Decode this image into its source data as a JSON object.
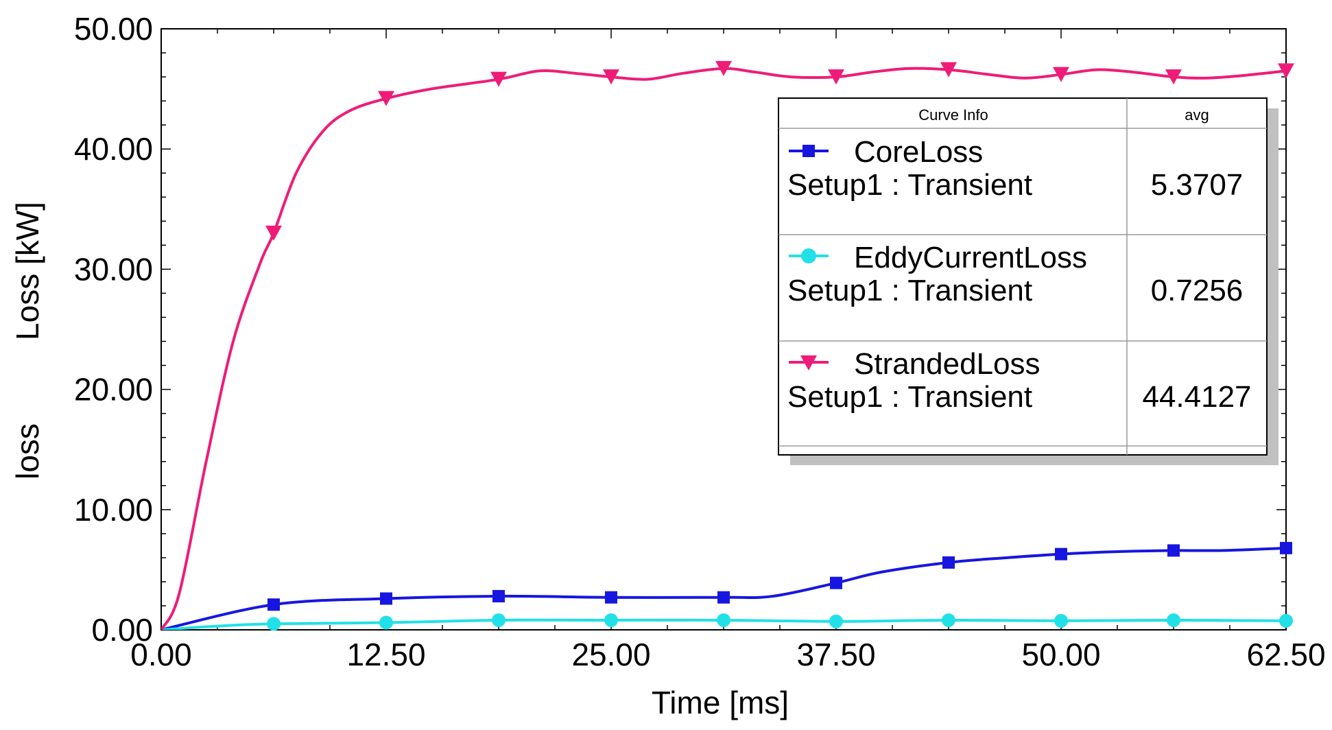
{
  "chart_data": {
    "type": "line",
    "xlabel": "Time [ms]",
    "ylabel": "Loss [kW]",
    "ylabel2": "loss",
    "xlim": [
      0,
      62.5
    ],
    "ylim": [
      0,
      50
    ],
    "x_ticks": [
      "0.00",
      "12.50",
      "25.00",
      "37.50",
      "50.00",
      "62.50"
    ],
    "y_ticks": [
      "0.00",
      "10.00",
      "20.00",
      "30.00",
      "40.00",
      "50.00"
    ],
    "legend": {
      "header_name": "Curve Info",
      "header_value": "avg",
      "placement": "top-right"
    },
    "series": [
      {
        "name": "CoreLoss",
        "setup": "Setup1 : Transient",
        "avg": "5.3707",
        "color": "#1616e0",
        "marker": "square",
        "x": [
          0,
          6.25,
          12.5,
          18.75,
          25,
          31.25,
          34,
          37.5,
          40,
          43.75,
          47,
          50,
          53,
          56.25,
          59,
          62.5
        ],
        "y": [
          0,
          2.1,
          2.6,
          2.8,
          2.7,
          2.7,
          2.8,
          3.9,
          4.8,
          5.6,
          6.0,
          6.3,
          6.5,
          6.6,
          6.6,
          6.8
        ],
        "marker_x": [
          6.25,
          12.5,
          18.75,
          25,
          31.25,
          37.5,
          43.75,
          50,
          56.25,
          62.5
        ]
      },
      {
        "name": "EddyCurrentLoss",
        "setup": "Setup1 : Transient",
        "avg": "0.7256",
        "color": "#22e0e8",
        "marker": "circle",
        "x": [
          0,
          3,
          6.25,
          12.5,
          18.75,
          25,
          31.25,
          37.5,
          43.75,
          50,
          56.25,
          62.5
        ],
        "y": [
          0,
          0.3,
          0.5,
          0.6,
          0.8,
          0.8,
          0.8,
          0.7,
          0.8,
          0.75,
          0.8,
          0.75
        ],
        "marker_x": [
          6.25,
          12.5,
          18.75,
          25,
          31.25,
          37.5,
          43.75,
          50,
          56.25,
          62.5
        ]
      },
      {
        "name": "StrandedLoss",
        "setup": "Setup1 : Transient",
        "avg": "44.4127",
        "color": "#ee1c78",
        "marker": "triangle-down",
        "x": [
          0,
          1,
          2.5,
          4,
          5.5,
          6.25,
          7.5,
          9,
          10.5,
          12.5,
          15,
          18.75,
          21,
          23,
          25,
          27,
          29,
          31.25,
          33,
          35,
          37.5,
          39.5,
          41.5,
          43.75,
          46,
          48,
          50,
          52,
          54,
          56.25,
          58,
          60,
          62.5
        ],
        "y": [
          0,
          3,
          14,
          24,
          30.5,
          33,
          38,
          41.5,
          43.2,
          44.2,
          45,
          45.8,
          46.5,
          46.3,
          46,
          45.8,
          46.3,
          46.7,
          46.4,
          46,
          46,
          46.4,
          46.7,
          46.6,
          46.2,
          45.9,
          46.2,
          46.6,
          46.4,
          46,
          45.9,
          46.1,
          46.5
        ],
        "marker_x": [
          6.25,
          12.5,
          18.75,
          25,
          31.25,
          37.5,
          43.75,
          50,
          56.25,
          62.5
        ]
      }
    ]
  }
}
